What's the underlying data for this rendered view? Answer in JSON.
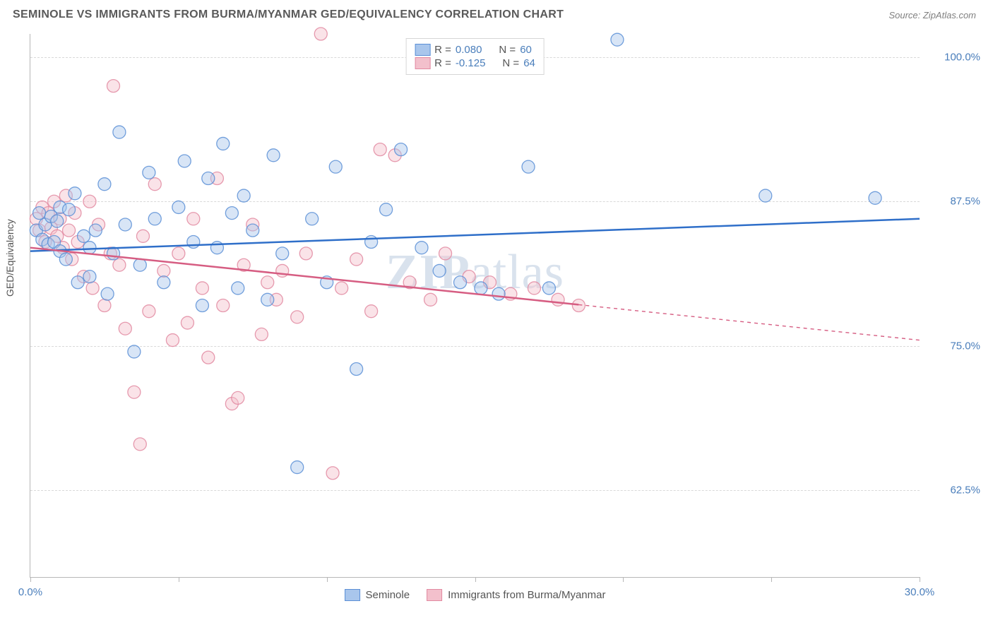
{
  "title": "SEMINOLE VS IMMIGRANTS FROM BURMA/MYANMAR GED/EQUIVALENCY CORRELATION CHART",
  "source": "Source: ZipAtlas.com",
  "y_axis_label": "GED/Equivalency",
  "watermark_bold": "ZIP",
  "watermark_rest": "atlas",
  "chart": {
    "type": "scatter",
    "xlim": [
      0,
      30
    ],
    "ylim": [
      55,
      102
    ],
    "y_gridlines": [
      62.5,
      75.0,
      87.5,
      100.0
    ],
    "y_tick_labels": [
      "62.5%",
      "75.0%",
      "87.5%",
      "100.0%"
    ],
    "x_ticks": [
      0,
      5,
      10,
      15,
      20,
      25,
      30
    ],
    "x_tick_labels": {
      "0": "0.0%",
      "30": "30.0%"
    },
    "background_color": "#ffffff",
    "grid_color": "#d9d9d9",
    "axis_color": "#b7b7b7",
    "marker_radius": 9,
    "marker_opacity": 0.45,
    "line_width": 2.5,
    "series": {
      "seminole": {
        "label": "Seminole",
        "color_fill": "#a9c6ec",
        "color_stroke": "#5b8fd6",
        "line_color": "#2f6fc9",
        "r_value": "0.080",
        "n_value": "60",
        "regression": {
          "x1": 0,
          "y1": 83.2,
          "x2": 30,
          "y2": 86.0,
          "solid_to_x": 30
        },
        "points": [
          [
            0.2,
            85.0
          ],
          [
            0.3,
            86.5
          ],
          [
            0.4,
            84.2
          ],
          [
            0.5,
            85.5
          ],
          [
            0.6,
            83.8
          ],
          [
            0.7,
            86.2
          ],
          [
            0.8,
            84.0
          ],
          [
            0.9,
            85.8
          ],
          [
            1.0,
            83.2
          ],
          [
            1.0,
            87.0
          ],
          [
            1.2,
            82.5
          ],
          [
            1.3,
            86.8
          ],
          [
            1.5,
            88.2
          ],
          [
            1.6,
            80.5
          ],
          [
            1.8,
            84.5
          ],
          [
            2.0,
            83.5
          ],
          [
            2.0,
            81.0
          ],
          [
            2.2,
            85.0
          ],
          [
            2.5,
            89.0
          ],
          [
            2.6,
            79.5
          ],
          [
            2.8,
            83.0
          ],
          [
            3.0,
            93.5
          ],
          [
            3.2,
            85.5
          ],
          [
            3.5,
            74.5
          ],
          [
            3.7,
            82.0
          ],
          [
            4.0,
            90.0
          ],
          [
            4.2,
            86.0
          ],
          [
            4.5,
            80.5
          ],
          [
            5.0,
            87.0
          ],
          [
            5.2,
            91.0
          ],
          [
            5.5,
            84.0
          ],
          [
            5.8,
            78.5
          ],
          [
            6.0,
            89.5
          ],
          [
            6.3,
            83.5
          ],
          [
            6.5,
            92.5
          ],
          [
            6.8,
            86.5
          ],
          [
            7.0,
            80.0
          ],
          [
            7.2,
            88.0
          ],
          [
            7.5,
            85.0
          ],
          [
            8.0,
            79.0
          ],
          [
            8.2,
            91.5
          ],
          [
            8.5,
            83.0
          ],
          [
            9.0,
            64.5
          ],
          [
            9.5,
            86.0
          ],
          [
            10.0,
            80.5
          ],
          [
            10.3,
            90.5
          ],
          [
            11.0,
            73.0
          ],
          [
            11.5,
            84.0
          ],
          [
            12.0,
            86.8
          ],
          [
            12.5,
            92.0
          ],
          [
            13.2,
            83.5
          ],
          [
            13.8,
            81.5
          ],
          [
            14.5,
            80.5
          ],
          [
            15.2,
            80.0
          ],
          [
            15.8,
            79.5
          ],
          [
            16.8,
            90.5
          ],
          [
            17.5,
            80.0
          ],
          [
            19.8,
            101.5
          ],
          [
            24.8,
            88.0
          ],
          [
            28.5,
            87.8
          ]
        ]
      },
      "burma": {
        "label": "Immigrants from Burma/Myanmar",
        "color_fill": "#f3c0cc",
        "color_stroke": "#e28aa1",
        "line_color": "#d65d82",
        "r_value": "-0.125",
        "n_value": "64",
        "regression": {
          "x1": 0,
          "y1": 83.5,
          "x2": 30,
          "y2": 75.5,
          "solid_to_x": 18.5
        },
        "points": [
          [
            0.2,
            86.0
          ],
          [
            0.3,
            85.0
          ],
          [
            0.4,
            87.0
          ],
          [
            0.5,
            84.0
          ],
          [
            0.6,
            86.5
          ],
          [
            0.7,
            85.2
          ],
          [
            0.8,
            87.5
          ],
          [
            0.9,
            84.5
          ],
          [
            1.0,
            86.0
          ],
          [
            1.1,
            83.5
          ],
          [
            1.2,
            88.0
          ],
          [
            1.3,
            85.0
          ],
          [
            1.4,
            82.5
          ],
          [
            1.5,
            86.5
          ],
          [
            1.6,
            84.0
          ],
          [
            1.8,
            81.0
          ],
          [
            2.0,
            87.5
          ],
          [
            2.1,
            80.0
          ],
          [
            2.3,
            85.5
          ],
          [
            2.5,
            78.5
          ],
          [
            2.7,
            83.0
          ],
          [
            2.8,
            97.5
          ],
          [
            3.0,
            82.0
          ],
          [
            3.2,
            76.5
          ],
          [
            3.5,
            71.0
          ],
          [
            3.7,
            66.5
          ],
          [
            3.8,
            84.5
          ],
          [
            4.0,
            78.0
          ],
          [
            4.2,
            89.0
          ],
          [
            4.5,
            81.5
          ],
          [
            4.8,
            75.5
          ],
          [
            5.0,
            83.0
          ],
          [
            5.3,
            77.0
          ],
          [
            5.5,
            86.0
          ],
          [
            5.8,
            80.0
          ],
          [
            6.0,
            74.0
          ],
          [
            6.3,
            89.5
          ],
          [
            6.5,
            78.5
          ],
          [
            6.8,
            70.0
          ],
          [
            7.0,
            70.5
          ],
          [
            7.2,
            82.0
          ],
          [
            7.5,
            85.5
          ],
          [
            7.8,
            76.0
          ],
          [
            8.0,
            80.5
          ],
          [
            8.3,
            79.0
          ],
          [
            8.5,
            81.5
          ],
          [
            9.0,
            77.5
          ],
          [
            9.3,
            83.0
          ],
          [
            9.8,
            102.0
          ],
          [
            10.2,
            64.0
          ],
          [
            10.5,
            80.0
          ],
          [
            11.0,
            82.5
          ],
          [
            11.5,
            78.0
          ],
          [
            11.8,
            92.0
          ],
          [
            12.3,
            91.5
          ],
          [
            12.8,
            80.5
          ],
          [
            13.5,
            79.0
          ],
          [
            14.0,
            83.0
          ],
          [
            14.8,
            81.0
          ],
          [
            15.5,
            80.5
          ],
          [
            16.2,
            79.5
          ],
          [
            17.0,
            80.0
          ],
          [
            17.8,
            79.0
          ],
          [
            18.5,
            78.5
          ]
        ]
      }
    }
  },
  "legend_top": {
    "r_label": "R =",
    "n_label": "N ="
  }
}
